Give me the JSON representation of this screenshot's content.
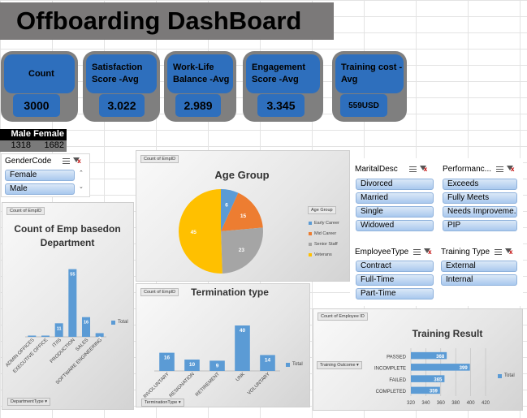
{
  "title": "Offboarding DashBoard",
  "kpis": [
    {
      "label": "Count",
      "value": "3000"
    },
    {
      "label": "Satisfaction Score -Avg",
      "value": "3.022"
    },
    {
      "label": "Work-Life Balance -Avg",
      "value": "2.989"
    },
    {
      "label": "Engagement Score -Avg",
      "value": "3.345"
    },
    {
      "label": "Training cost -Avg",
      "value": "559USD"
    }
  ],
  "gender_table": {
    "headers": [
      "Male",
      "Female"
    ],
    "values": [
      "1318",
      "1682"
    ]
  },
  "slicers": {
    "gender": {
      "title": "GenderCode",
      "items": [
        "Female",
        "Male"
      ]
    },
    "marital": {
      "title": "MaritalDesc",
      "items": [
        "Divorced",
        "Married",
        "Single",
        "Widowed"
      ]
    },
    "performance": {
      "title": "Performanc...",
      "items": [
        "Exceeds",
        "Fully Meets",
        "Needs Improveme...",
        "PIP"
      ]
    },
    "employee_type": {
      "title": "EmployeeType",
      "items": [
        "Contract",
        "Full-Time",
        "Part-Time"
      ]
    },
    "training_type": {
      "title": "Training Type",
      "items": [
        "External",
        "Internal"
      ]
    }
  },
  "charts_meta": {
    "age": {
      "field": "Count of EmpID",
      "legend_title": "Age Group"
    },
    "dept": {
      "field": "Count of EmpID",
      "filter": "DepartmentType"
    },
    "term": {
      "field": "Count of EmpID",
      "filter": "TerminationType"
    },
    "training": {
      "field": "Count of Employee ID",
      "filter": "Training Outcome"
    }
  },
  "chart_data": [
    {
      "id": "age",
      "type": "pie",
      "title": "Age Group",
      "categories": [
        "Early Career",
        "Mid Career",
        "Senior Staff",
        "Veterans"
      ],
      "values": [
        6,
        15,
        23,
        45
      ],
      "colors": [
        "#5b9bd5",
        "#ed7d31",
        "#a5a5a5",
        "#ffc000"
      ],
      "legend_position": "right"
    },
    {
      "id": "dept",
      "type": "bar",
      "title": "Count of Emp basedon Department",
      "categories": [
        "ADMIN OFFICES",
        "EXECUTIVE OFFICE",
        "IT/IS",
        "PRODUCTION",
        "SALES",
        "SOFTWARE ENGINEERING"
      ],
      "series": [
        {
          "name": "Total",
          "values": [
            1,
            1,
            11,
            55,
            16,
            3
          ]
        }
      ],
      "ylim": [
        0,
        60
      ],
      "legend_position": "right"
    },
    {
      "id": "term",
      "type": "bar",
      "title": "Termination type",
      "categories": [
        "INVOLUNTARY",
        "RESIGNATION",
        "RETIREMENT",
        "UNK",
        "VOLUNTARY"
      ],
      "series": [
        {
          "name": "Total",
          "values": [
            16,
            10,
            9,
            40,
            14
          ]
        }
      ],
      "ylim": [
        0,
        45
      ],
      "legend_position": "right"
    },
    {
      "id": "training",
      "type": "bar",
      "orientation": "horizontal",
      "title": "Training Result",
      "categories": [
        "PASSED",
        "INCOMPLETE",
        "FAILED",
        "COMPLETED"
      ],
      "series": [
        {
          "name": "Total",
          "values": [
            368,
            399,
            365,
            359
          ]
        }
      ],
      "xlim": [
        320,
        420
      ],
      "xticks": [
        "320",
        "340",
        "360",
        "380",
        "400",
        "420"
      ],
      "legend_position": "right"
    }
  ]
}
